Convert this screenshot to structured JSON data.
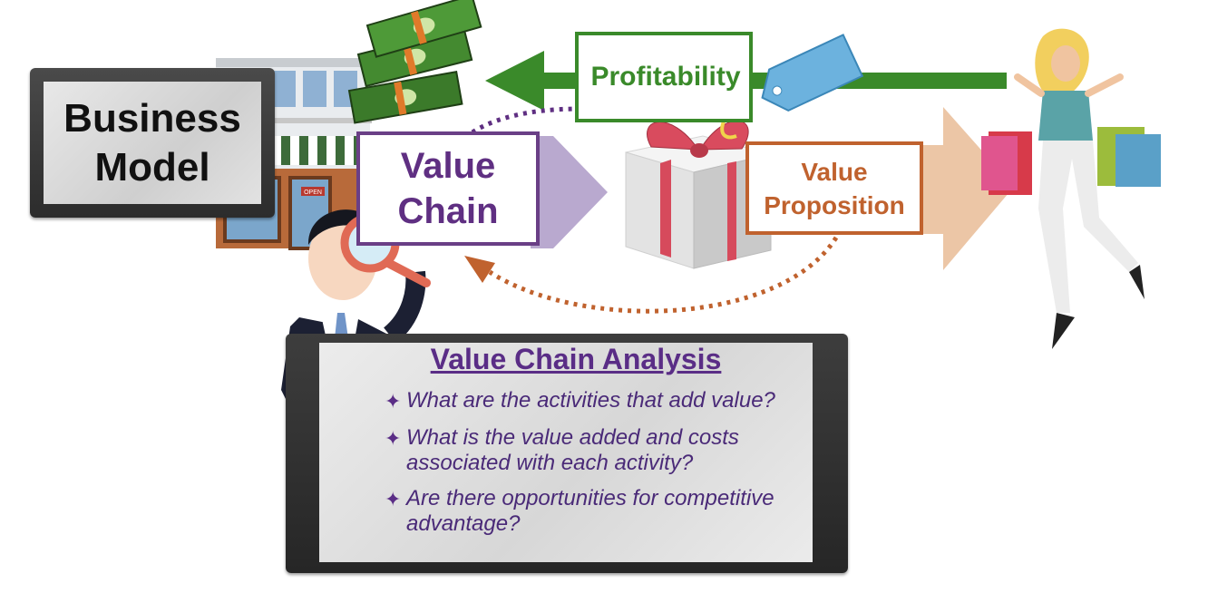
{
  "business_model": {
    "label": "Business\nModel"
  },
  "value_chain": {
    "label": "Value\nChain"
  },
  "profitability": {
    "label": "Profitability"
  },
  "value_proposition": {
    "label": "Value\nProposition"
  },
  "analysis": {
    "title": "Value Chain Analysis",
    "bullet_icon": "four-point-star",
    "items": [
      "What are the activities that add value?",
      "What is the value added and costs associated with each activity?",
      "Are there opportunities for competitive advantage?"
    ]
  },
  "storefront": {
    "sign": "OPEN"
  },
  "colors": {
    "value_chain": "#5f2f82",
    "profitability": "#3a8a2a",
    "value_proposition": "#c0622e",
    "analysis_text": "#4a2a78"
  }
}
